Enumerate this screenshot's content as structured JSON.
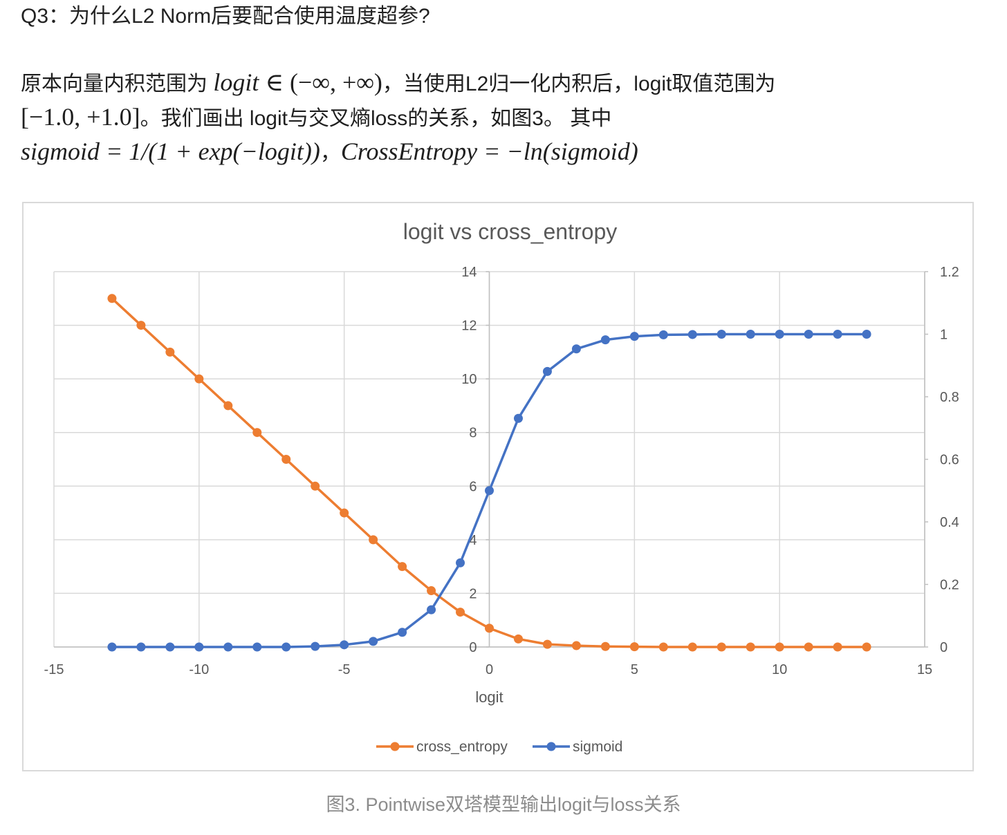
{
  "heading": "Q3：为什么L2 Norm后要配合使用温度超参?",
  "paragraph": {
    "l1_a": "原本向量内积范围为 ",
    "l1_math_var": "logit",
    "l1_math_rest": " ∈ (−∞, +∞)",
    "l1_b": "，当使用L2归一化内积后，logit取值范围为",
    "l2_math": "[−1.0, +1.0]",
    "l2_b": "。我们画出 logit与交叉熵loss的关系，如图3。 其中",
    "l3_math_a": "sigmoid = 1/(1 + exp(−logit))",
    "l3_sep": "，",
    "l3_math_b": "CrossEntropy = −ln(sigmoid)"
  },
  "caption": "图3. Pointwise双塔模型输出logit与loss关系",
  "colors": {
    "cross_entropy": "#ED7D31",
    "sigmoid": "#4472C4",
    "grid": "#d9d9d9",
    "axis": "#bfbfbf",
    "tick_text": "#595959",
    "title_text": "#595959"
  },
  "chart_data": {
    "type": "scatter",
    "title": "logit vs cross_entropy",
    "xlabel": "logit",
    "ylabel": "",
    "y2label": "",
    "xlim": [
      -15,
      15
    ],
    "ylim": [
      0,
      14
    ],
    "y2lim": [
      0,
      1.2
    ],
    "xticks": [
      -15,
      -10,
      -5,
      0,
      5,
      10,
      15
    ],
    "yticks": [
      0,
      2,
      4,
      6,
      8,
      10,
      12,
      14
    ],
    "y2ticks": [
      "0",
      "0.2",
      "0.4",
      "0.6",
      "0.8",
      "1",
      "1.2"
    ],
    "grid": true,
    "legend_position": "bottom",
    "x": [
      -13,
      -12,
      -11,
      -10,
      -9,
      -8,
      -7,
      -6,
      -5,
      -4,
      -3,
      -2,
      -1,
      0,
      1,
      2,
      3,
      4,
      5,
      6,
      7,
      8,
      9,
      10,
      11,
      12,
      13
    ],
    "series": [
      {
        "name": "cross_entropy",
        "axis": "left",
        "values": [
          13.0,
          12.0,
          11.0,
          10.0,
          9.0,
          8.0,
          7.0,
          6.0,
          5.0,
          4.0,
          3.0,
          2.1,
          1.3,
          0.7,
          0.3,
          0.1,
          0.05,
          0.02,
          0.01,
          0,
          0,
          0,
          0,
          0,
          0,
          0,
          0
        ]
      },
      {
        "name": "sigmoid",
        "axis": "right",
        "values": [
          0,
          0,
          0,
          0,
          0,
          0,
          0,
          0.002,
          0.007,
          0.018,
          0.047,
          0.119,
          0.269,
          0.5,
          0.731,
          0.881,
          0.953,
          0.982,
          0.993,
          0.998,
          0.999,
          1,
          1,
          1,
          1,
          1,
          1
        ]
      }
    ]
  }
}
